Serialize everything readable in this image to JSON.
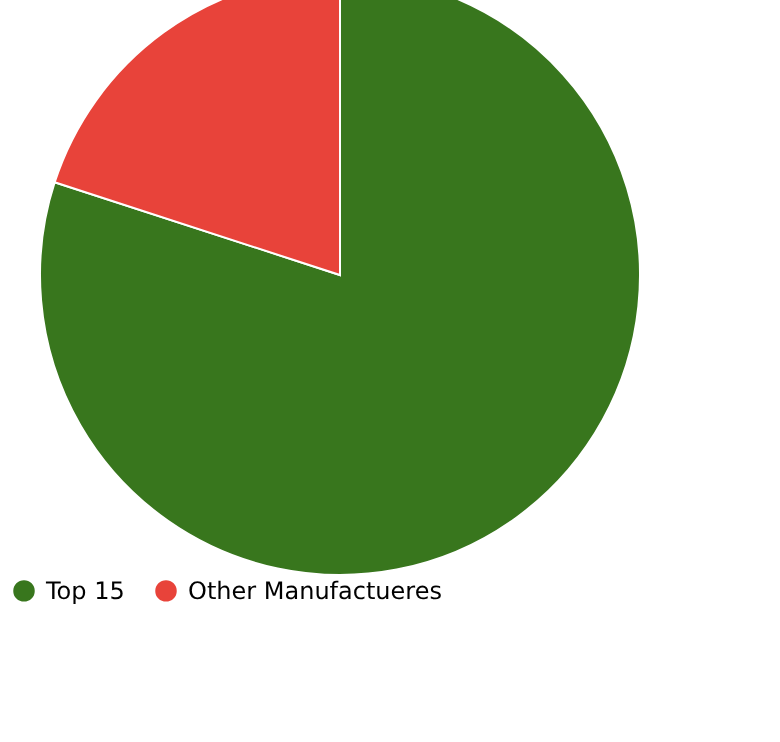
{
  "chart_data": {
    "type": "pie",
    "categories": [
      "Top 15",
      "Other Manufactueres"
    ],
    "values": [
      80,
      20
    ],
    "colors": [
      "#38761d",
      "#e8433a"
    ],
    "legend": "bottom"
  }
}
